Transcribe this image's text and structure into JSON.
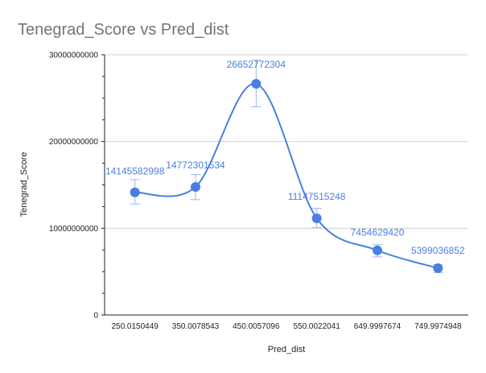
{
  "chart_data": {
    "type": "line",
    "title": "Tenegrad_Score vs Pred_dist",
    "xlabel": "Pred_dist",
    "ylabel": "Tenegrad_Score",
    "categories": [
      "250.0150449",
      "350.0078543",
      "450.0057096",
      "550.0022041",
      "649.9997674",
      "749.9974948"
    ],
    "series": [
      {
        "values": [
          14145582998,
          14772301534,
          26652772304,
          11147515248,
          7454629420,
          5399036852
        ],
        "data_labels": [
          "14145582998",
          "14772301534",
          "26652772304",
          "11147515248",
          "7454629420",
          "5399036852"
        ],
        "error_low": [
          12800000000,
          13300000000,
          24000000000,
          10100000000,
          6700000000,
          4900000000
        ],
        "error_high": [
          15600000000,
          16200000000,
          29400000000,
          12300000000,
          8100000000,
          5800000000
        ],
        "color": "#4a7fe0"
      }
    ],
    "ylim": [
      0,
      30000000000
    ],
    "yticks": [
      "0",
      "10000000000",
      "20000000000",
      "30000000000"
    ],
    "grid": true,
    "smooth": true,
    "legend": "none"
  }
}
